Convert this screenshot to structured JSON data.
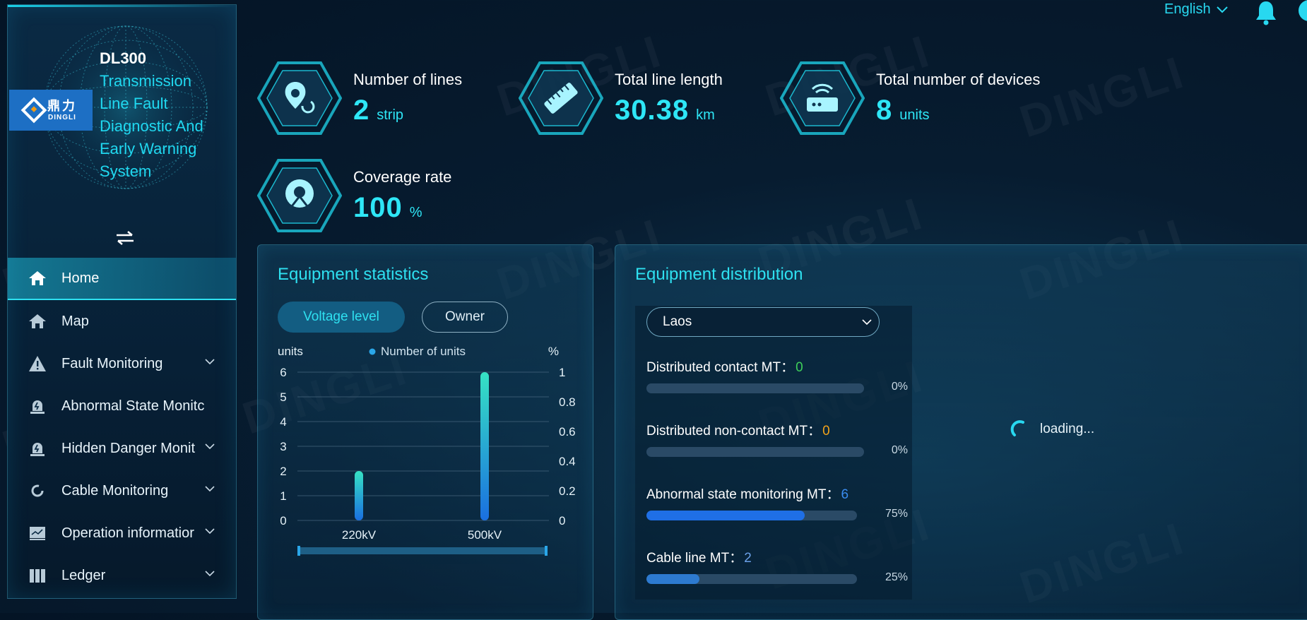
{
  "app": {
    "model": "DL300",
    "title_lines": [
      "Transmission",
      "Line Fault",
      "Diagnostic And",
      "Early Warning",
      "System"
    ],
    "logo_cn": "鼎力",
    "logo_en": "DINGLI",
    "watermark": "DINGLI"
  },
  "header": {
    "language": "English",
    "icons": [
      "chevron-down-icon",
      "bell-icon",
      "avatar-icon"
    ]
  },
  "sidebar": {
    "items": [
      {
        "label": "Home",
        "icon": "home-icon",
        "active": true,
        "has_children": false
      },
      {
        "label": "Map",
        "icon": "home-icon",
        "active": false,
        "has_children": false
      },
      {
        "label": "Fault Monitoring",
        "icon": "warning-icon",
        "active": false,
        "has_children": true
      },
      {
        "label": "Abnormal State Monitc",
        "icon": "alarm-icon",
        "active": false,
        "has_children": false
      },
      {
        "label": "Hidden Danger Monit",
        "icon": "alarm-icon",
        "active": false,
        "has_children": true
      },
      {
        "label": "Cable Monitoring",
        "icon": "refresh-icon",
        "active": false,
        "has_children": true
      },
      {
        "label": "Operation informatior",
        "icon": "monitor-icon",
        "active": false,
        "has_children": true
      },
      {
        "label": "Ledger",
        "icon": "book-icon",
        "active": false,
        "has_children": true
      }
    ]
  },
  "stats": [
    {
      "label": "Number of lines",
      "value": "2",
      "unit": "strip",
      "icon": "location-icon"
    },
    {
      "label": "Total line length",
      "value": "30.38",
      "unit": "km",
      "icon": "ruler-icon"
    },
    {
      "label": "Total number of devices",
      "value": "8",
      "unit": "units",
      "icon": "router-icon"
    },
    {
      "label": "Coverage rate",
      "value": "100",
      "unit": "%",
      "icon": "coverage-icon"
    }
  ],
  "equipment_statistics": {
    "title": "Equipment statistics",
    "tabs": [
      {
        "label": "Voltage level",
        "active": true
      },
      {
        "label": "Owner",
        "active": false
      }
    ]
  },
  "chart_data": {
    "type": "bar",
    "categories": [
      "220kV",
      "500kV"
    ],
    "series": [
      {
        "name": "Number of units",
        "values": [
          2,
          6
        ]
      }
    ],
    "ylabel": "units",
    "ylabel_right": "%",
    "ylim": [
      0,
      6
    ],
    "yticks": [
      "0",
      "1",
      "2",
      "3",
      "4",
      "5",
      "6"
    ],
    "ylim_right": [
      0,
      1
    ],
    "yticks_right": [
      "0",
      "0.2",
      "0.4",
      "0.6",
      "0.8",
      "1"
    ],
    "grid": true,
    "legend": "top-center",
    "colors": {
      "bar_top": "#36e2c4",
      "bar_bottom": "#1a6fe0"
    }
  },
  "equipment_distribution": {
    "title": "Equipment distribution",
    "region": "Laos",
    "loading_text": "loading...",
    "items": [
      {
        "label": "Distributed contact MT：",
        "count": "0",
        "count_color": "#3ecf5a",
        "percent": "0%",
        "fraction": 0,
        "fill": "#2a6fd6"
      },
      {
        "label": "Distributed non-contact MT：",
        "count": "0",
        "count_color": "#f0a21a",
        "percent": "0%",
        "fraction": 0,
        "fill": "#2a6fd6"
      },
      {
        "label": "Abnormal state monitoring MT：",
        "count": "6",
        "count_color": "#3a8cf0",
        "percent": "75%",
        "fraction": 0.75,
        "fill": "#1f6fe6"
      },
      {
        "label": "Cable line MT：",
        "count": "2",
        "count_color": "#6aa0e8",
        "percent": "25%",
        "fraction": 0.25,
        "fill": "#2d7ad0"
      }
    ]
  }
}
